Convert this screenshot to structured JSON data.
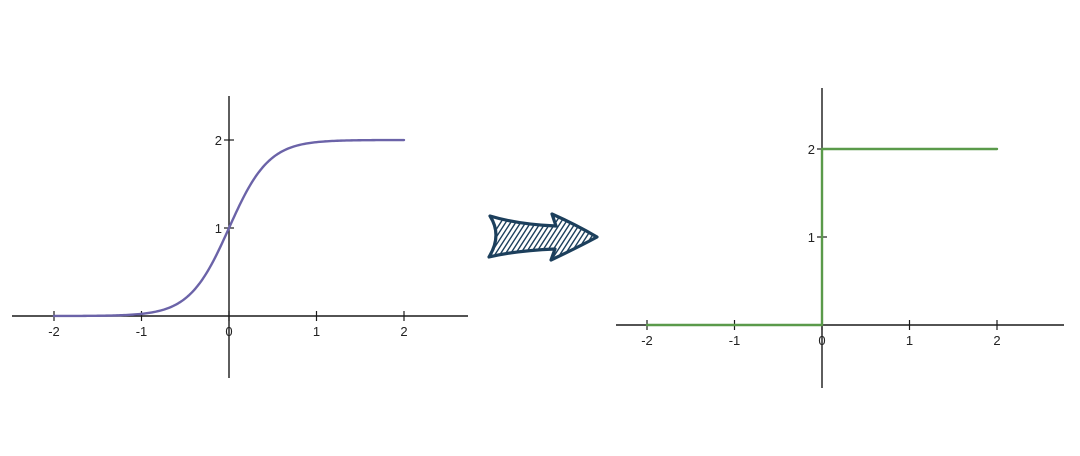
{
  "colors": {
    "axis": "#1a1a1a",
    "arrow_outline": "#1c3f5c",
    "arrow_hatch": "#1c3f5c"
  },
  "arrow": {
    "icon": "hand-drawn-hatched-arrow-right"
  },
  "chart_data": [
    {
      "type": "line",
      "curve": "smooth sigmoid",
      "title": "",
      "xlabel": "",
      "ylabel": "",
      "xlim": [
        -2,
        2
      ],
      "ylim": [
        0,
        2
      ],
      "grid": false,
      "x_ticks": [
        "-2",
        "-1",
        "0",
        "1",
        "2"
      ],
      "y_ticks": [
        "1",
        "2"
      ],
      "color": "#6b63a8",
      "series": [
        {
          "x": [
            -2,
            -1.5,
            -1,
            -0.75,
            -0.5,
            -0.25,
            0,
            0.25,
            0.5,
            0.75,
            1,
            1.5,
            2
          ],
          "y": [
            0,
            0,
            0.005,
            0.03,
            0.14,
            0.48,
            1.0,
            1.52,
            1.86,
            1.97,
            1.995,
            2,
            2
          ]
        }
      ]
    },
    {
      "type": "line",
      "curve": "step",
      "title": "",
      "xlabel": "",
      "ylabel": "",
      "xlim": [
        -2,
        2
      ],
      "ylim": [
        0,
        2
      ],
      "grid": false,
      "x_ticks": [
        "-2",
        "-1",
        "0",
        "1",
        "2"
      ],
      "y_ticks": [
        "1",
        "2"
      ],
      "color": "#5a9a4a",
      "series": [
        {
          "x": [
            -2,
            -1,
            0,
            0,
            1,
            2
          ],
          "y": [
            0,
            0,
            0,
            2,
            2,
            2
          ]
        }
      ]
    }
  ]
}
